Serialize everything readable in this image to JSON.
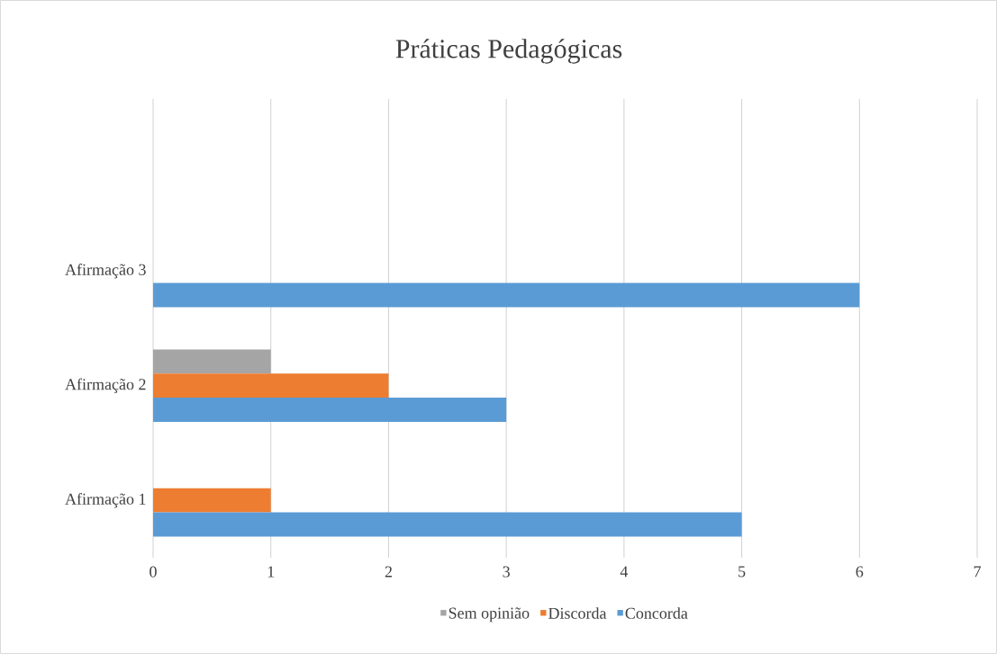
{
  "chart_data": {
    "type": "bar",
    "orientation": "horizontal",
    "title": "Práticas Pedagógicas",
    "categories": [
      "Afirmação 3",
      "Afirmação 2",
      "Afirmação 1"
    ],
    "series": [
      {
        "name": "Sem opinião",
        "color": "#a5a5a5",
        "values": [
          null,
          1,
          null
        ]
      },
      {
        "name": "Discorda",
        "color": "#ed7d31",
        "values": [
          null,
          2,
          1
        ]
      },
      {
        "name": "Concorda",
        "color": "#5b9bd5",
        "values": [
          6,
          3,
          5
        ]
      }
    ],
    "xlim": [
      0,
      7
    ],
    "xticks": [
      0,
      1,
      2,
      3,
      4,
      5,
      6,
      7
    ],
    "grid": "x",
    "legend": "bottom"
  }
}
